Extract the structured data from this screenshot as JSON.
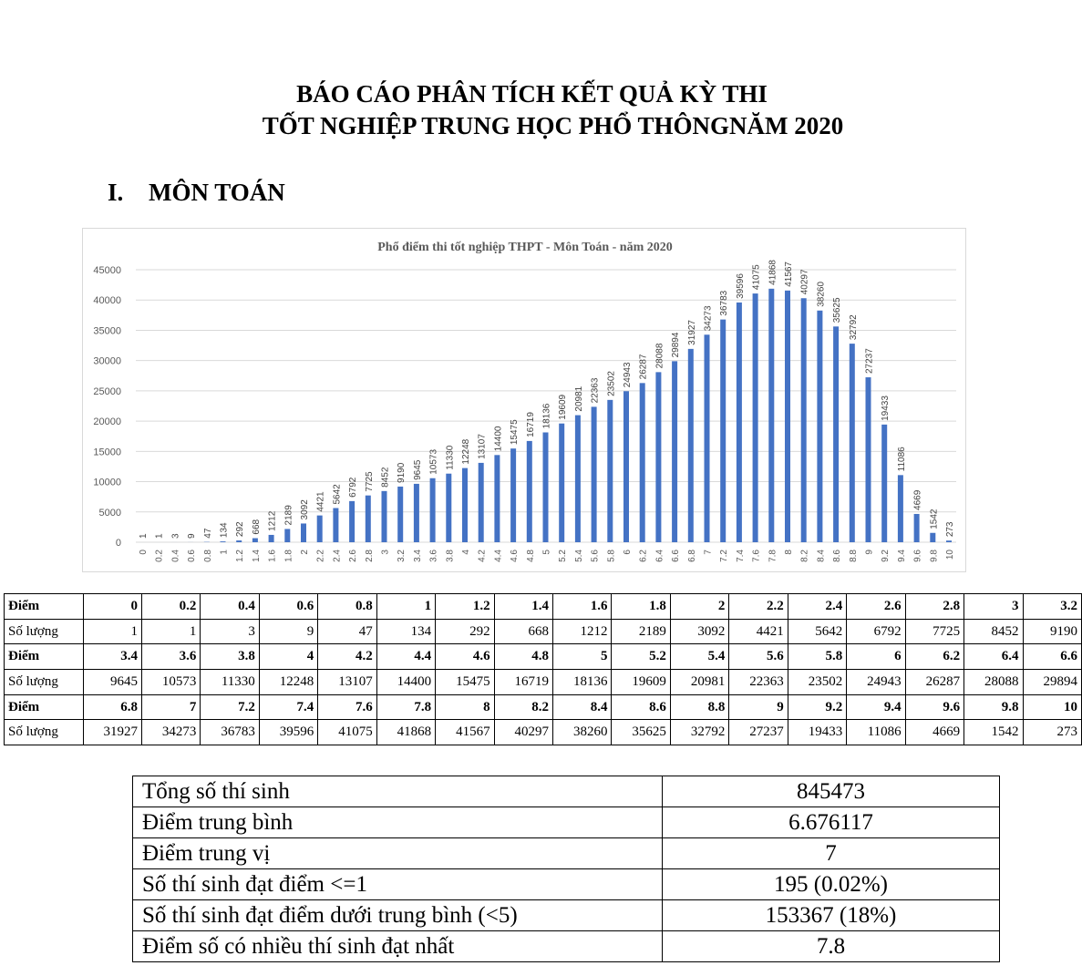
{
  "title_line1": "BÁO CÁO PHÂN TÍCH KẾT QUẢ KỲ THI",
  "title_line2": "TỐT NGHIỆP TRUNG HỌC PHỔ THÔNGNĂM 2020",
  "section": {
    "number": "I.",
    "title": "MÔN TOÁN"
  },
  "chart_data": {
    "type": "bar",
    "title": "Phổ điểm thi tốt nghiệp THPT - Môn Toán - năm 2020",
    "xlabel": "",
    "ylabel": "",
    "ylim": [
      0,
      45000
    ],
    "yticks": [
      "0",
      "5000",
      "10000",
      "15000",
      "20000",
      "25000",
      "30000",
      "35000",
      "40000",
      "45000"
    ],
    "grid": true,
    "legend": "none",
    "bar_color": "#4472c4",
    "categories": [
      "0",
      "0.2",
      "0.4",
      "0.6",
      "0.8",
      "1",
      "1.2",
      "1.4",
      "1.6",
      "1.8",
      "2",
      "2.2",
      "2.4",
      "2.6",
      "2.8",
      "3",
      "3.2",
      "3.4",
      "3.6",
      "3.8",
      "4",
      "4.2",
      "4.4",
      "4.6",
      "4.8",
      "5",
      "5.2",
      "5.4",
      "5.6",
      "5.8",
      "6",
      "6.2",
      "6.4",
      "6.6",
      "6.8",
      "7",
      "7.2",
      "7.4",
      "7.6",
      "7.8",
      "8",
      "8.2",
      "8.4",
      "8.6",
      "8.8",
      "9",
      "9.2",
      "9.4",
      "9.6",
      "9.8",
      "10"
    ],
    "values": [
      1,
      1,
      3,
      9,
      47,
      134,
      292,
      668,
      1212,
      2189,
      3092,
      4421,
      5642,
      6792,
      7725,
      8452,
      9190,
      9645,
      10573,
      11330,
      12248,
      13107,
      14400,
      15475,
      16719,
      18136,
      19609,
      20981,
      22363,
      23502,
      24943,
      26287,
      28088,
      29894,
      31927,
      34273,
      36783,
      39596,
      41075,
      41868,
      41567,
      40297,
      38260,
      35625,
      32792,
      27237,
      19433,
      11086,
      4669,
      1542,
      273
    ]
  },
  "score_table": {
    "score_label": "Điểm",
    "count_label": "Số lượng",
    "rows": [
      {
        "scores": [
          "0",
          "0.2",
          "0.4",
          "0.6",
          "0.8",
          "1",
          "1.2",
          "1.4",
          "1.6",
          "1.8",
          "2",
          "2.2",
          "2.4",
          "2.6",
          "2.8",
          "3",
          "3.2"
        ],
        "counts": [
          "1",
          "1",
          "3",
          "9",
          "47",
          "134",
          "292",
          "668",
          "1212",
          "2189",
          "3092",
          "4421",
          "5642",
          "6792",
          "7725",
          "8452",
          "9190"
        ]
      },
      {
        "scores": [
          "3.4",
          "3.6",
          "3.8",
          "4",
          "4.2",
          "4.4",
          "4.6",
          "4.8",
          "5",
          "5.2",
          "5.4",
          "5.6",
          "5.8",
          "6",
          "6.2",
          "6.4",
          "6.6"
        ],
        "counts": [
          "9645",
          "10573",
          "11330",
          "12248",
          "13107",
          "14400",
          "15475",
          "16719",
          "18136",
          "19609",
          "20981",
          "22363",
          "23502",
          "24943",
          "26287",
          "28088",
          "29894"
        ]
      },
      {
        "scores": [
          "6.8",
          "7",
          "7.2",
          "7.4",
          "7.6",
          "7.8",
          "8",
          "8.2",
          "8.4",
          "8.6",
          "8.8",
          "9",
          "9.2",
          "9.4",
          "9.6",
          "9.8",
          "10"
        ],
        "counts": [
          "31927",
          "34273",
          "36783",
          "39596",
          "41075",
          "41868",
          "41567",
          "40297",
          "38260",
          "35625",
          "32792",
          "27237",
          "19433",
          "11086",
          "4669",
          "1542",
          "273"
        ]
      }
    ]
  },
  "stats": [
    {
      "label": "Tổng số thí sinh",
      "value": "845473"
    },
    {
      "label": "Điểm trung bình",
      "value": "6.676117"
    },
    {
      "label": "Điểm trung vị",
      "value": "7"
    },
    {
      "label": "Số thí sinh đạt điểm <=1",
      "value": "195 (0.02%)"
    },
    {
      "label": "Số thí sinh đạt điểm dưới trung bình (<5)",
      "value": "153367 (18%)"
    },
    {
      "label": "Điểm số có nhiều thí sinh đạt nhất",
      "value": "7.8"
    }
  ]
}
